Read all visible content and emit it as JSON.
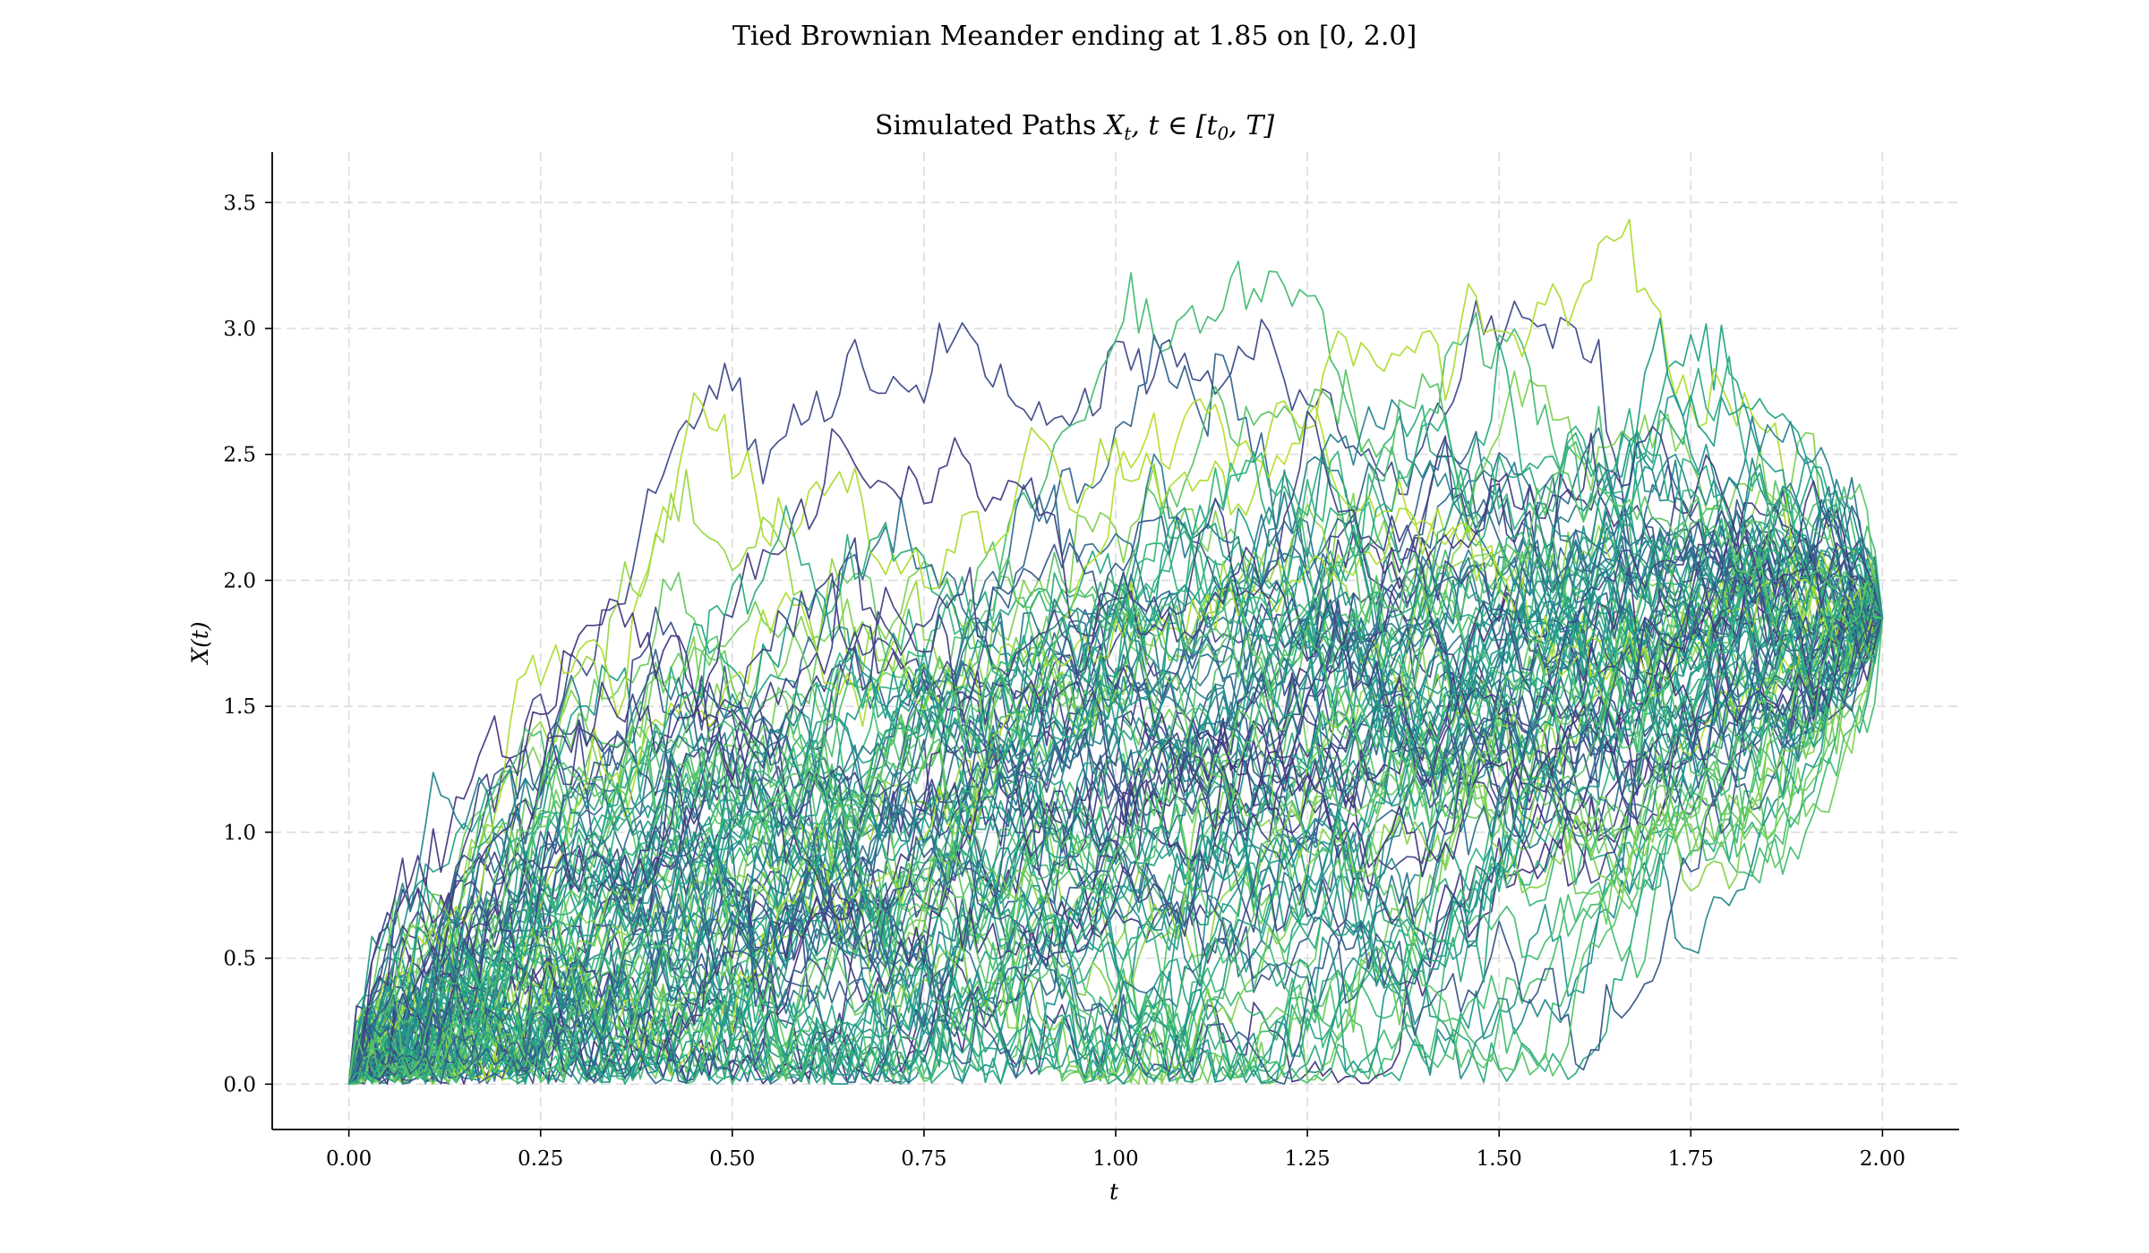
{
  "figure": {
    "suptitle": "Tied Brownian Meander ending at 1.85 on [0, 2.0]"
  },
  "chart_data": {
    "type": "line",
    "title": "Simulated Paths X_t, t ∈ [t_0, T]",
    "title_text": "Simulated Paths ",
    "title_math": "X",
    "title_math_sub": "t",
    "title_math_rest": ", t ∈ [t",
    "title_math_sub2": "0",
    "title_math_end": ", T]",
    "xlabel": "t",
    "ylabel": "X(t)",
    "xlim": [
      -0.1,
      2.1
    ],
    "ylim": [
      -0.18,
      3.7
    ],
    "x_ticks": [
      0.0,
      0.25,
      0.5,
      0.75,
      1.0,
      1.25,
      1.5,
      1.75,
      2.0
    ],
    "x_tick_labels": [
      "0.00",
      "0.25",
      "0.50",
      "0.75",
      "1.00",
      "1.25",
      "1.50",
      "1.75",
      "2.00"
    ],
    "y_ticks": [
      0.0,
      0.5,
      1.0,
      1.5,
      2.0,
      2.5,
      3.0,
      3.5
    ],
    "y_tick_labels": [
      "0.0",
      "0.5",
      "1.0",
      "1.5",
      "2.0",
      "2.5",
      "3.0",
      "3.5"
    ],
    "grid": true,
    "t0": 0.0,
    "T": 2.0,
    "start_value": 0.0,
    "end_value": 1.85,
    "n_paths": 100,
    "n_steps": 200,
    "colormap": "viridis",
    "color_range": [
      0.15,
      0.9
    ]
  }
}
